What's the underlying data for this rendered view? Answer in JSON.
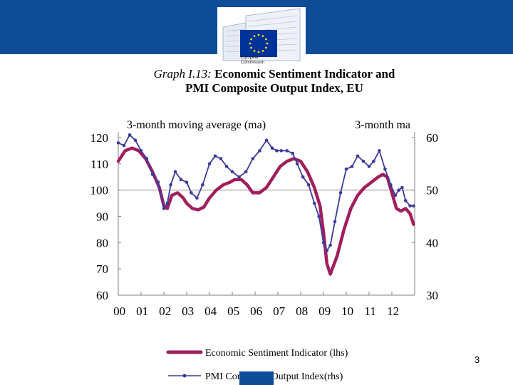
{
  "header": {
    "org_line1": "European",
    "org_line2": "Commission",
    "brand_color": "#0f4c97"
  },
  "page_number": "3",
  "chart_data": {
    "type": "line",
    "title_prefix": "Graph I.13:",
    "title_line1": "Economic Sentiment Indicator and",
    "title_line2": "PMI Composite Output Index, EU",
    "left_axis_label": "3-month moving average (ma)",
    "right_axis_label": "3-month ma",
    "categories": [
      "00",
      "01",
      "02",
      "03",
      "04",
      "05",
      "06",
      "07",
      "08",
      "09",
      "10",
      "11",
      "12"
    ],
    "x_range": [
      2000.0,
      2013.0
    ],
    "left_ylim": [
      60,
      120
    ],
    "right_ylim": [
      30,
      60
    ],
    "left_ticks": [
      "120",
      "110",
      "100",
      "90",
      "80",
      "70",
      "60"
    ],
    "right_ticks": [
      "60",
      "50",
      "40",
      "30"
    ],
    "reference_line_left_value": 100,
    "series": [
      {
        "name": "Economic Sentiment Indicator (lhs)",
        "axis": "left",
        "color": "#a01f5c",
        "x": [
          2000.0,
          2000.3,
          2000.6,
          2000.9,
          2001.2,
          2001.5,
          2001.8,
          2002.0,
          2002.15,
          2002.35,
          2002.6,
          2002.85,
          2003.0,
          2003.25,
          2003.5,
          2003.75,
          2004.0,
          2004.3,
          2004.6,
          2004.9,
          2005.1,
          2005.4,
          2005.65,
          2005.9,
          2006.2,
          2006.5,
          2006.8,
          2007.1,
          2007.4,
          2007.7,
          2008.0,
          2008.3,
          2008.6,
          2008.85,
          2009.0,
          2009.15,
          2009.3,
          2009.6,
          2009.9,
          2010.2,
          2010.5,
          2010.8,
          2011.1,
          2011.4,
          2011.6,
          2011.8,
          2012.0,
          2012.2,
          2012.4,
          2012.6,
          2012.8,
          2012.95
        ],
        "y": [
          111,
          115,
          116,
          115,
          112,
          107,
          101,
          94,
          93,
          98,
          99,
          97,
          95,
          93,
          92.5,
          93.5,
          97,
          100,
          102,
          103,
          104,
          104,
          102,
          99,
          99,
          101,
          105,
          109,
          111,
          112,
          111,
          107,
          101,
          94,
          84,
          72,
          68,
          75,
          85,
          93,
          98,
          101,
          103,
          105,
          106,
          105,
          99,
          93,
          92,
          93,
          91,
          87
        ]
      },
      {
        "name": "PMI Composite Output Index(rhs)",
        "axis": "right",
        "color": "#3b3b9c",
        "x": [
          2000.0,
          2000.25,
          2000.5,
          2000.75,
          2001.0,
          2001.25,
          2001.5,
          2001.75,
          2002.0,
          2002.15,
          2002.3,
          2002.5,
          2002.75,
          2003.0,
          2003.2,
          2003.45,
          2003.7,
          2004.0,
          2004.25,
          2004.5,
          2004.75,
          2005.0,
          2005.3,
          2005.6,
          2005.9,
          2006.2,
          2006.5,
          2006.75,
          2006.95,
          2007.15,
          2007.4,
          2007.65,
          2007.85,
          2008.1,
          2008.35,
          2008.6,
          2008.8,
          2009.0,
          2009.15,
          2009.3,
          2009.5,
          2009.75,
          2010.0,
          2010.25,
          2010.5,
          2010.75,
          2011.0,
          2011.2,
          2011.45,
          2011.7,
          2011.95,
          2012.15,
          2012.3,
          2012.45,
          2012.6,
          2012.8,
          2012.95
        ],
        "y": [
          59,
          58.5,
          60.5,
          59.5,
          57.5,
          56,
          53,
          51.5,
          46.5,
          47.5,
          51,
          53.5,
          52,
          51.5,
          49.5,
          48.5,
          51,
          55,
          56.5,
          56,
          54.5,
          53.5,
          52.5,
          53.5,
          56,
          57.5,
          59.5,
          58,
          57.5,
          57.5,
          57.5,
          57,
          55,
          52.5,
          51,
          47.5,
          45,
          40,
          38.5,
          39.5,
          44,
          49.5,
          54,
          54.5,
          56.5,
          55.5,
          54.5,
          55.5,
          57.5,
          54,
          51,
          49,
          50,
          50.5,
          48,
          47,
          47
        ]
      }
    ]
  }
}
